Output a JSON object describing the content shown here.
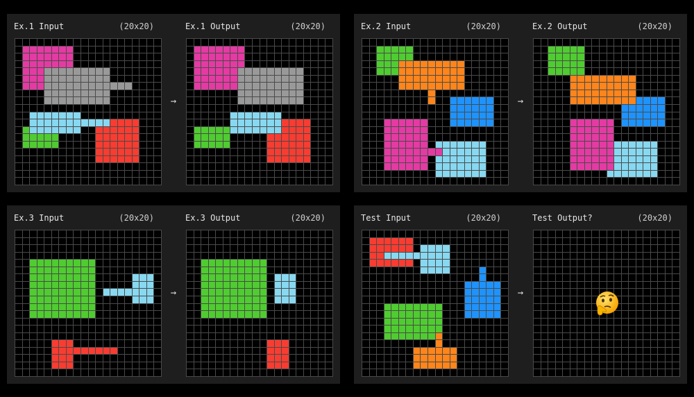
{
  "palette": {
    ".": "#000000",
    "M": "#e53aa3",
    "G": "#999999",
    "C": "#87d8f1",
    "R": "#f93c31",
    "N": "#4fcc30",
    "O": "#ff851b",
    "B": "#1e93ff"
  },
  "arrow": "→",
  "panels": [
    {
      "input": {
        "label": "Ex.1 Input",
        "size": "(20x20)",
        "rows": [
          "....................",
          ".MMMMMMM............",
          ".MMMMMMM............",
          ".MMMMMMM............",
          ".MMMGGGGGGGGG.......",
          ".MMMGGGGGGGGG.......",
          ".MMMGGGGGGGGGGGG....",
          "....GGGGGGGGG.......",
          "....GGGGGGGGG.......",
          "....................",
          "..CCCCCCC...........",
          "..CCCCCCCCCCCRRRR...",
          ".NCCCCCCC..RRRRRR...",
          ".NNNNN.....RRRRRR...",
          ".NNNNN.....RRRRRR...",
          "...........RRRRRR...",
          "...........RRRRRR...",
          "....................",
          "....................",
          "...................."
        ]
      },
      "output": {
        "label": "Ex.1 Output",
        "size": "(20x20)",
        "rows": [
          "....................",
          ".MMMMMMM............",
          ".MMMMMMM............",
          ".MMMMMMM............",
          ".MMMMMMGGGGGGGGG....",
          ".MMMMMMGGGGGGGGG....",
          ".MMMMMMGGGGGGGGG....",
          ".......GGGGGGGGG....",
          ".......GGGGGGGGG....",
          "....................",
          "......CCCCCCC.......",
          "......CCCCCCCRRRR...",
          ".NNNNNCCCCCCCRRRR...",
          ".NNNNN.....RRRRRR...",
          ".NNNNN.....RRRRRR...",
          "...........RRRRRR...",
          "...........RRRRRR...",
          "....................",
          "....................",
          "...................."
        ]
      }
    },
    {
      "input": {
        "label": "Ex.2 Input",
        "size": "(20x20)",
        "rows": [
          "....................",
          "..NNNNN.............",
          "..NNNNN.............",
          "..NNNOOOOOOOOO......",
          "..NNNOOOOOOOOO......",
          ".....OOOOOOOOO......",
          ".....OOOOOOOOO......",
          ".........O..........",
          ".........O..BBBBBB..",
          "............BBBBBB..",
          "............BBBBBB..",
          "...MMMMMM...BBBBBB..",
          "...MMMMMM...........",
          "...MMMMMM...........",
          "...MMMMMM.CCCCCCC...",
          "...MMMMMMMMCCCCCC...",
          "...MMMMMM.CCCCCCC...",
          "...MMMMMM.CCCCCCC...",
          "..........CCCCCCC...",
          "...................."
        ]
      },
      "output": {
        "label": "Ex.2 Output",
        "size": "(20x20)",
        "rows": [
          "....................",
          "..NNNNN.............",
          "..NNNNN.............",
          "..NNNNN.............",
          "..NNNNN.............",
          ".....OOOOOOOOO......",
          ".....OOOOOOOOO......",
          ".....OOOOOOOOO......",
          ".....OOOOOOOOOBBBB..",
          "............BBBBBB..",
          "............BBBBBB..",
          ".....MMMMMM.BBBBBB..",
          ".....MMMMMM.........",
          ".....MMMMMM.........",
          ".....MMMMMMCCCCCC...",
          ".....MMMMMMCCCCCC...",
          ".....MMMMMMCCCCCC...",
          ".....MMMMMMCCCCCC...",
          "..........CCCCCCC...",
          "...................."
        ]
      }
    },
    {
      "input": {
        "label": "Ex.3 Input",
        "size": "(20x20)",
        "rows": [
          "....................",
          "....................",
          "....................",
          "....................",
          "..NNNNNNNNN.........",
          "..NNNNNNNNN.........",
          "..NNNNNNNNN.....CCC.",
          "..NNNNNNNNN.....CCC.",
          "..NNNNNNNNN.CCCCCCC.",
          "..NNNNNNNNN.....CCC.",
          "..NNNNNNNNN.........",
          "..NNNNNNNNN.........",
          "....................",
          "....................",
          "....................",
          ".....RRR............",
          ".....RRRRRRRRR......",
          ".....RRR............",
          ".....RRR............",
          "...................."
        ]
      },
      "output": {
        "label": "Ex.3 Output",
        "size": "(20x20)",
        "rows": [
          "....................",
          "....................",
          "....................",
          "....................",
          "..NNNNNNNNN.........",
          "..NNNNNNNNN.........",
          "..NNNNNNNNN.CCC.....",
          "..NNNNNNNNN.CCC.....",
          "..NNNNNNNNN.CCC.....",
          "..NNNNNNNNN.CCC.....",
          "..NNNNNNNNN.........",
          "..NNNNNNNNN.........",
          "....................",
          "....................",
          "....................",
          "...........RRR......",
          "...........RRR......",
          "...........RRR......",
          "...........RRR......",
          "...................."
        ]
      }
    },
    {
      "input": {
        "label": "Test Input",
        "size": "(20x20)",
        "rows": [
          "....................",
          ".RRRRRR.............",
          ".RRRRRR.CCCC........",
          ".RRCCCCCCCCC........",
          ".RRRRRR.CCCC........",
          "........CCCC....B...",
          "................B...",
          "..............BBBBB.",
          "..............BBBBB.",
          "..............BBBBB.",
          "...NNNNNNNN...BBBBB.",
          "...NNNNNNNN...BBBBB.",
          "...NNNNNNNN.........",
          "...NNNNNNNN.........",
          "...NNNNNNNO.........",
          "..........O.........",
          ".......OOOOOO.......",
          ".......OOOOOO.......",
          ".......OOOOOO.......",
          "...................."
        ]
      },
      "output": {
        "label": "Test Output?",
        "size": "(20x20)",
        "emoji": "🤔",
        "icon": "thinking-face-icon",
        "rows": [
          "....................",
          "....................",
          "....................",
          "....................",
          "....................",
          "....................",
          "....................",
          "....................",
          "....................",
          "....................",
          "....................",
          "....................",
          "....................",
          "....................",
          "....................",
          "....................",
          "....................",
          "....................",
          "....................",
          "...................."
        ]
      }
    }
  ]
}
